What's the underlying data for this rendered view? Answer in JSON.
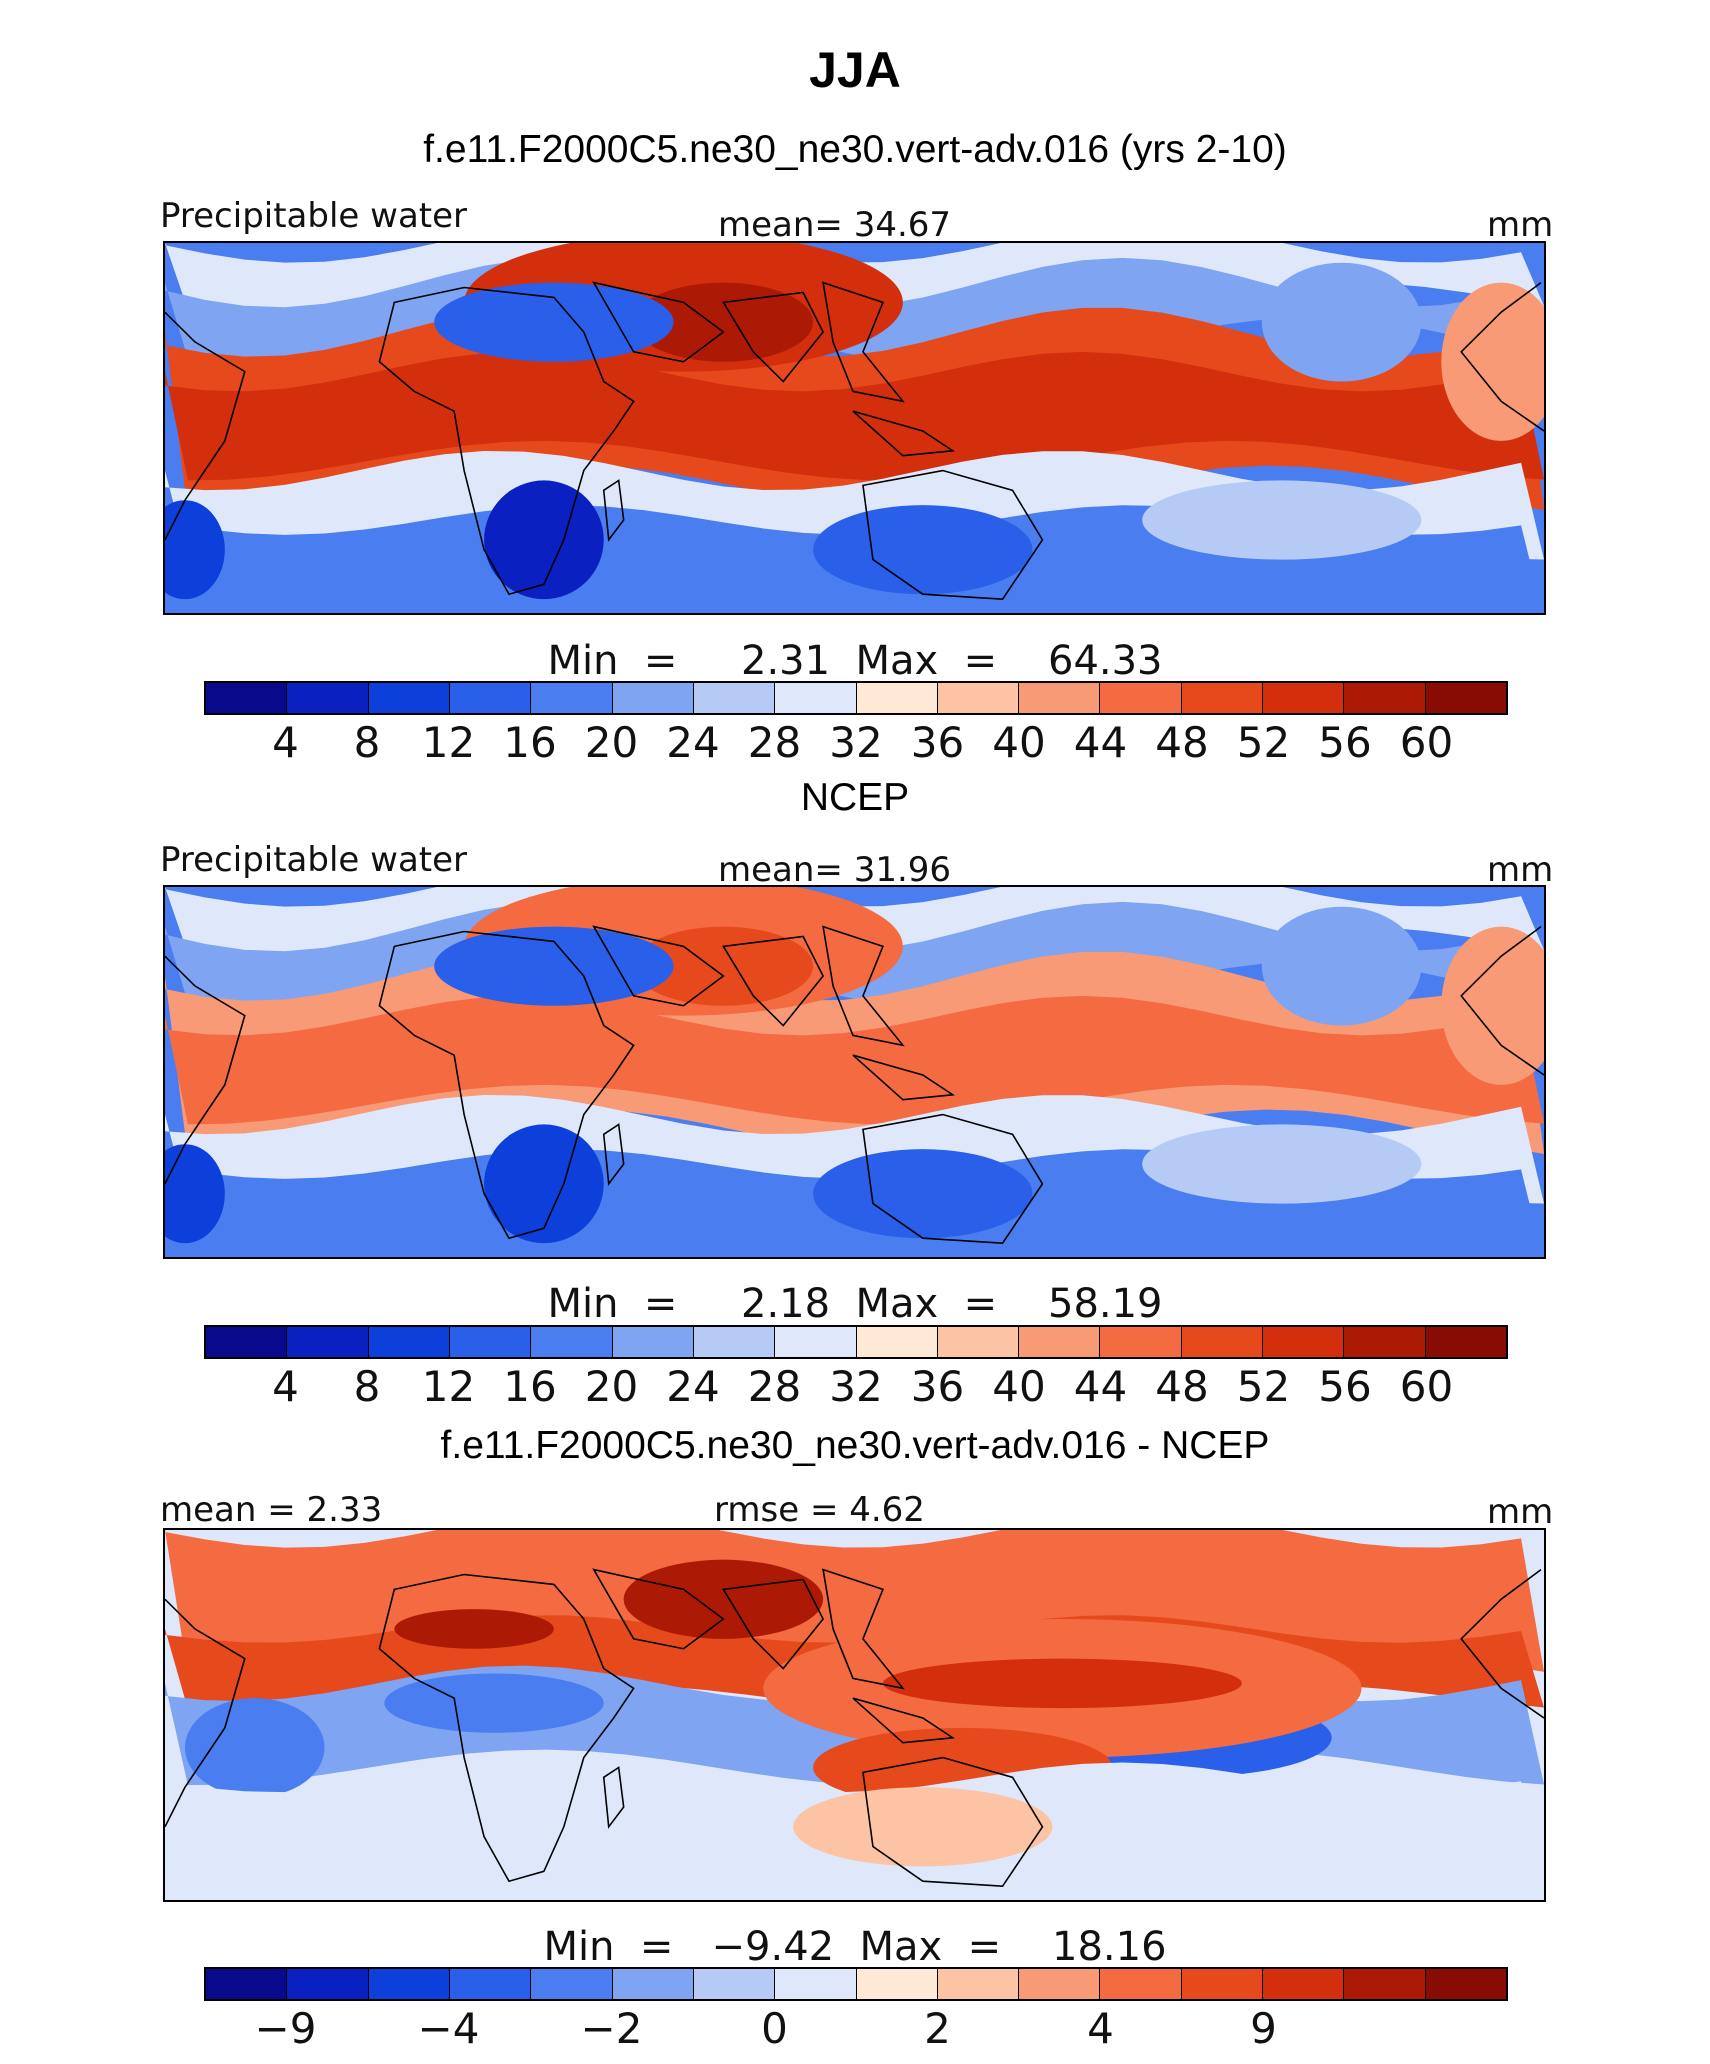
{
  "figure_title": "JJA",
  "colors": {
    "diverging_palette": [
      "#08098b",
      "#0a20c0",
      "#0d3fdb",
      "#2a5fe9",
      "#4a7ef0",
      "#7ea4f2",
      "#b5cbf5",
      "#dfe8fb",
      "#fee9d6",
      "#fcc3a4",
      "#f99a76",
      "#f46b42",
      "#e64a1c",
      "#d42f0c",
      "#ac1a06",
      "#880b04"
    ]
  },
  "panels": [
    {
      "title": "f.e11.F2000C5.ne30_ne30.vert-adv.016 (yrs 2-10)",
      "left_label": "Precipitable water",
      "center_label": "mean=   34.67",
      "right_label": "mm",
      "minmax": "Min  =     2.31  Max  =    64.33",
      "colorbar_ticks": [
        "4",
        "8",
        "12",
        "16",
        "20",
        "24",
        "28",
        "32",
        "36",
        "40",
        "44",
        "48",
        "52",
        "56",
        "60"
      ],
      "pattern": "model"
    },
    {
      "title": "NCEP",
      "left_label": "Precipitable water",
      "center_label": "mean=   31.96",
      "right_label": "mm",
      "minmax": "Min  =     2.18  Max  =    58.19",
      "colorbar_ticks": [
        "4",
        "8",
        "12",
        "16",
        "20",
        "24",
        "28",
        "32",
        "36",
        "40",
        "44",
        "48",
        "52",
        "56",
        "60"
      ],
      "pattern": "obs"
    },
    {
      "title": "f.e11.F2000C5.ne30_ne30.vert-adv.016 - NCEP",
      "left_label": "mean  =     2.33",
      "center_label": "rmse  =     4.62",
      "right_label": "mm",
      "minmax": "Min  =   −9.42  Max  =    18.16",
      "colorbar_ticks": [
        "−9",
        "",
        "−4",
        "",
        "−2",
        "",
        "0",
        "",
        "2",
        "",
        "4",
        "",
        "9",
        "",
        ""
      ],
      "pattern": "diff"
    }
  ]
}
